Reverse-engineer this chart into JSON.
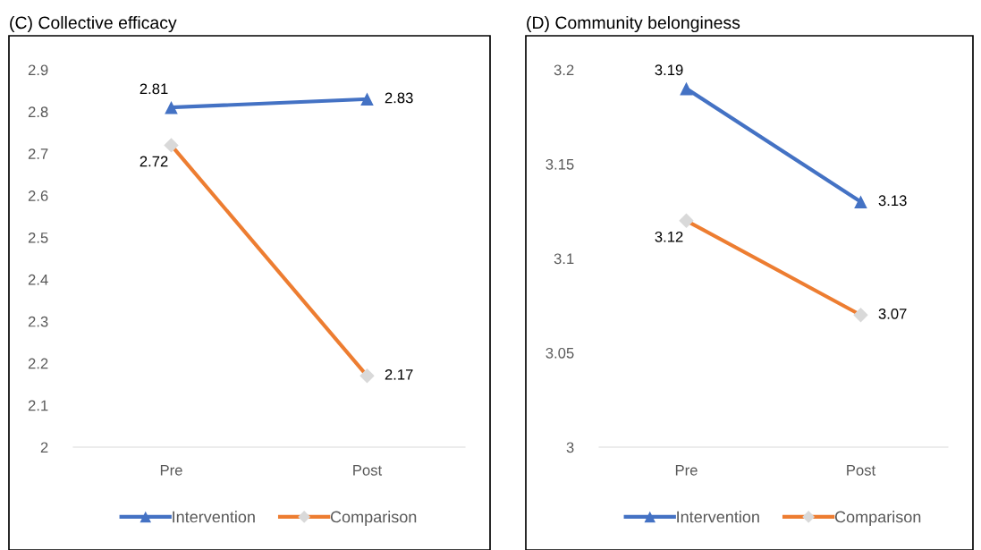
{
  "chart_data": [
    {
      "type": "line",
      "title": "(C) Collective efficacy",
      "categories": [
        "Pre",
        "Post"
      ],
      "series": [
        {
          "name": "Intervention",
          "color": "#4472c4",
          "colors": [
            "#4472c4",
            "#4472c4"
          ],
          "marker": "triangle",
          "values": [
            2.81,
            2.83
          ]
        },
        {
          "name": "Comparison",
          "color": "#ed7d31",
          "colors": [
            "#d9d9d9",
            "#d9d9d9"
          ],
          "marker": "diamond",
          "values": [
            2.72,
            2.17
          ]
        }
      ],
      "ylim": [
        2,
        2.9
      ],
      "yticks": [
        {
          "value": 2,
          "label": "2"
        },
        2.1,
        2.2,
        2.3,
        2.4,
        2.5,
        2.6,
        2.7,
        2.8,
        2.9
      ],
      "grid": false,
      "legend": "bottom",
      "data_labels": true
    },
    {
      "type": "line",
      "title": "(D) Community belonginess",
      "categories": [
        "Pre",
        "Post"
      ],
      "series": [
        {
          "name": "Intervention",
          "color": "#4472c4",
          "colors": [
            "#4472c4",
            "#4472c4"
          ],
          "marker": "triangle",
          "values": [
            3.19,
            3.13
          ]
        },
        {
          "name": "Comparison",
          "color": "#ed7d31",
          "colors": [
            "#d9d9d9",
            "#d9d9d9"
          ],
          "marker": "diamond",
          "values": [
            3.12,
            3.07
          ]
        }
      ],
      "ylim": [
        3,
        3.2
      ],
      "yticks": [
        {
          "value": 3,
          "label": "3"
        },
        3.05,
        {
          "value": 3.1,
          "label": "3.1"
        },
        3.15,
        {
          "value": 3.2,
          "label": "3.2"
        }
      ],
      "grid": false,
      "legend": "bottom",
      "data_labels": true
    }
  ]
}
